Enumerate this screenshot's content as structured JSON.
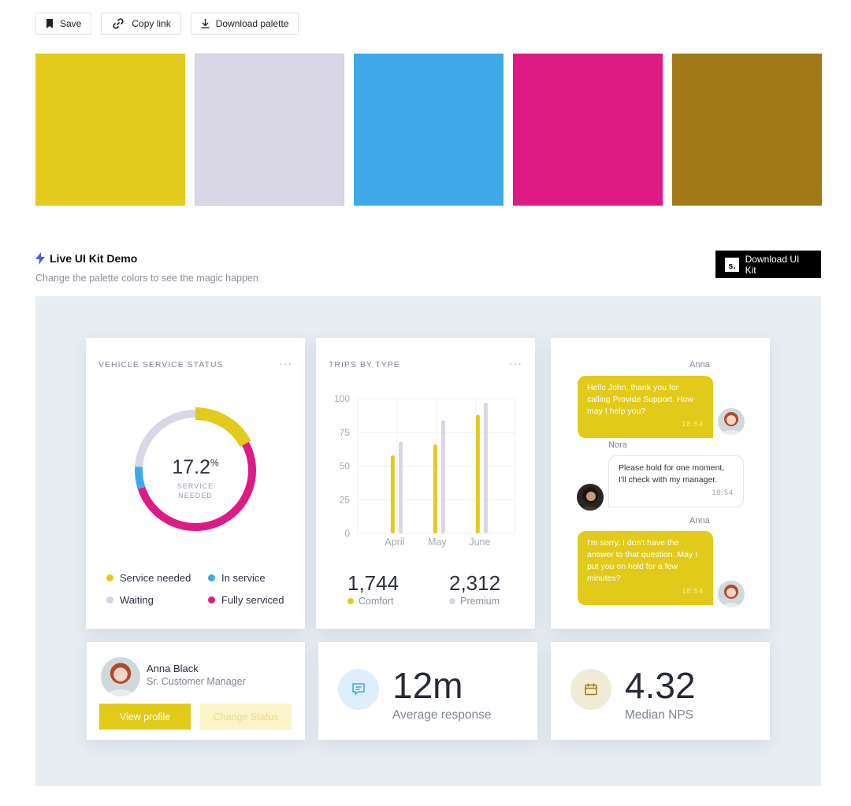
{
  "toolbar": {
    "save_label": "Save",
    "copy_link_label": "Copy link",
    "download_palette_label": "Download palette"
  },
  "palette": {
    "colors": [
      "#e2cb1c",
      "#d9d6e5",
      "#3ea8e8",
      "#de1a85",
      "#a17a17"
    ]
  },
  "demo": {
    "title": "Live UI Kit Demo",
    "subtitle": "Change the palette colors to see the magic happen",
    "download_kit_label": "Download UI Kit",
    "download_kit_logo": "s."
  },
  "service_card": {
    "title": "VEHICLE SERVICE STATUS",
    "menu": "···",
    "value": "17.2",
    "unit": "%",
    "caption_line1": "SERVICE",
    "caption_line2": "NEEDED",
    "legend": [
      {
        "label": "Service needed",
        "color": "#e2cb1c"
      },
      {
        "label": "In service",
        "color": "#3ea8e8"
      },
      {
        "label": "Waiting",
        "color": "#d9d6e5"
      },
      {
        "label": "Fully serviced",
        "color": "#de1a85"
      }
    ],
    "segments": [
      {
        "name": "Service needed",
        "percent": 17.2,
        "color": "#e2cb1c"
      },
      {
        "name": "Fully serviced",
        "percent": 52.8,
        "color": "#de1a85"
      },
      {
        "name": "In service",
        "percent": 6,
        "color": "#3ea8e8"
      },
      {
        "name": "Waiting",
        "percent": 24,
        "color": "#d9d6e5"
      }
    ]
  },
  "trips_card": {
    "title": "TRIPS BY TYPE",
    "menu": "···",
    "stat1_value": "1,744",
    "stat1_label": "Comfort",
    "stat2_value": "2,312",
    "stat2_label": "Premium"
  },
  "chart_data": {
    "type": "bar",
    "categories": [
      "April",
      "May",
      "June"
    ],
    "series": [
      {
        "name": "Comfort",
        "values": [
          58,
          66,
          88
        ],
        "color": "#e2cb1c"
      },
      {
        "name": "Premium",
        "values": [
          68,
          84,
          97
        ],
        "color": "#d9d6e5"
      }
    ],
    "yticks": [
      "0",
      "25",
      "50",
      "75",
      "100"
    ],
    "ylim": [
      0,
      100
    ],
    "grid": true
  },
  "chat": {
    "messages": [
      {
        "name": "Anna",
        "text": "Hello John, thank you for calling Provide Support. How may I help you?",
        "time": "18:54"
      },
      {
        "name": "Nora",
        "text": "Please hold for one moment, I'll check with my manager.",
        "time": "18:54"
      },
      {
        "name": "Anna",
        "text": "I'm sorry, I don't have the answer to that question. May I put you on hold for a few minutes?",
        "time": "18:54"
      }
    ]
  },
  "profile": {
    "name": "Anna Black",
    "role": "Sr. Customer Manager",
    "view_label": "View profile",
    "status_label": "Change Status"
  },
  "metrics": {
    "response_value": "12m",
    "response_label": "Average response",
    "response_icon": "chat-icon",
    "nps_value": "4.32",
    "nps_label": "Median NPS",
    "nps_icon": "calendar-icon"
  }
}
